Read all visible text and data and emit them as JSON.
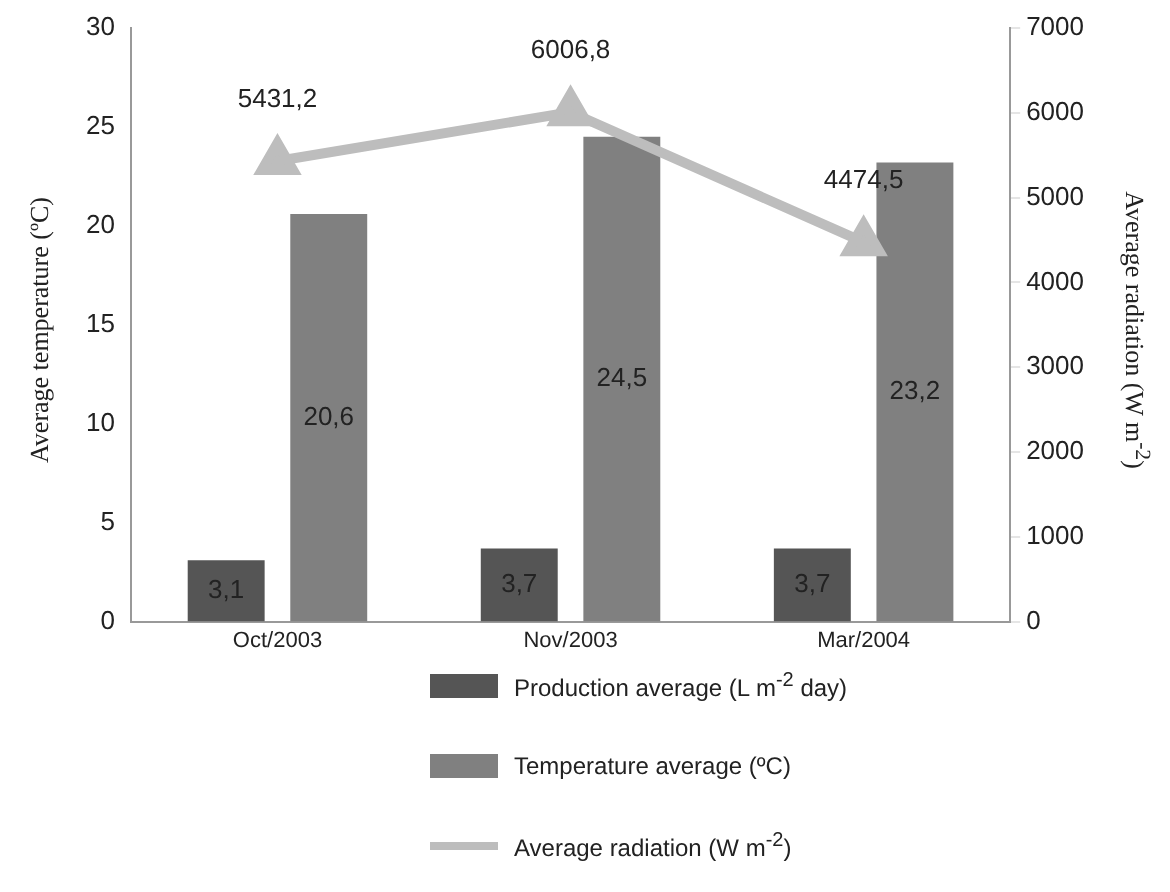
{
  "chart_data": {
    "type": "bar",
    "categories": [
      "Oct/2003",
      "Nov/2003",
      "Mar/2004"
    ],
    "ylabel": "Average temperature (ºC)",
    "y2label": "Average radiation (W m$^{-2}$)",
    "ylim": [
      0,
      30
    ],
    "yticks": [
      0,
      5,
      10,
      15,
      20,
      25,
      30
    ],
    "y2lim": [
      0,
      7000
    ],
    "y2ticks": [
      0,
      1000,
      2000,
      3000,
      4000,
      5000,
      6000,
      7000
    ],
    "grid": false,
    "legend": "bottom",
    "marker": "triangle",
    "line_style": "solid",
    "series": [
      {
        "name": "Production average (L m$^{-2}$ day)",
        "color": "#555555",
        "values": [
          3.1,
          3.7,
          3.7
        ],
        "value_labels": [
          "3,1",
          "3,7",
          "3,7"
        ]
      },
      {
        "name": "Temperature average (ºC)",
        "color": "#808080",
        "values": [
          20.6,
          24.5,
          23.2
        ],
        "value_labels": [
          "20,6",
          "24,5",
          "23,2"
        ]
      },
      {
        "name": "Average radiation (W m$^{-2}$)",
        "type": "line",
        "axis": "y2",
        "color": "#bdbdbd",
        "values": [
          5431.2,
          6006.8,
          4474.5
        ],
        "value_labels": [
          "5431,2",
          "6006,8",
          "4474,5"
        ]
      }
    ]
  }
}
